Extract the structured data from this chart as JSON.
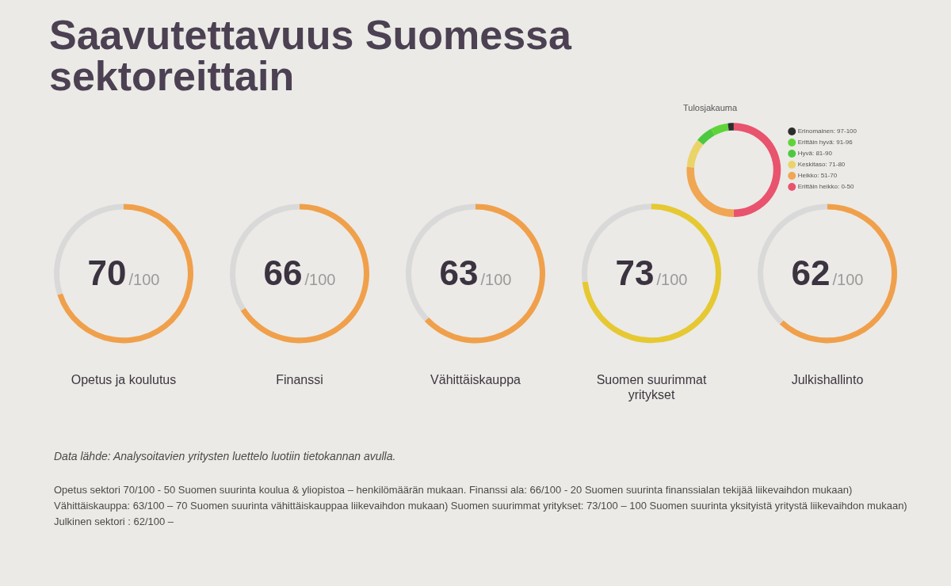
{
  "chart_data": [
    {
      "type": "other",
      "title": "Saavutettavuus Suomessa sektoreittain"
    },
    {
      "type": "donut",
      "title": "Tulosjakauma",
      "categories": [
        "Erinomainen: 97-100",
        "Erittäin hyvä: 91-96",
        "Hyvä: 81-90",
        "Keskitaso: 71-80",
        "Heikko: 51-70",
        "Erittäin heikko: 0-50"
      ],
      "values": [
        2,
        6,
        6,
        10,
        26,
        50
      ],
      "colors": [
        "#2d2d2d",
        "#5fd43a",
        "#4cc93f",
        "#ead46a",
        "#f0a652",
        "#e9536e"
      ],
      "legend": "right"
    },
    {
      "type": "donut",
      "title": "Opetus ja koulutus",
      "categories": [
        null,
        null
      ],
      "values": [
        70,
        30
      ],
      "colors": [
        "#f0a04b",
        "#d9d9d9"
      ],
      "annotations": [
        "70",
        "/100"
      ]
    },
    {
      "type": "donut",
      "title": "Finanssi",
      "categories": [
        null,
        null
      ],
      "values": [
        66,
        34
      ],
      "colors": [
        "#f0a04b",
        "#d9d9d9"
      ],
      "annotations": [
        "66",
        "/100"
      ]
    },
    {
      "type": "donut",
      "title": "Vähittäiskauppa",
      "categories": [
        null,
        null
      ],
      "values": [
        63,
        37
      ],
      "colors": [
        "#f0a04b",
        "#d9d9d9"
      ],
      "annotations": [
        "63",
        "/100"
      ]
    },
    {
      "type": "donut",
      "title": "Suomen suurimmat yritykset",
      "categories": [
        null,
        null
      ],
      "values": [
        73,
        27
      ],
      "colors": [
        "#e6c832",
        "#d9d9d9"
      ],
      "annotations": [
        "73",
        "/100"
      ]
    },
    {
      "type": "donut",
      "title": "Julkishallinto",
      "categories": [
        null,
        null
      ],
      "values": [
        62,
        38
      ],
      "colors": [
        "#f0a04b",
        "#d9d9d9"
      ],
      "annotations": [
        "62",
        "/100"
      ]
    },
    {
      "type": "other",
      "annotations": [
        "Data lähde: Analysoitavien yritysten luettelo luotiin tietokannan avulla.",
        "Opetus sektori 70/100 - 50 Suomen suurinta koulua & yliopistoa – henkilömäärän mukaan. Finanssi ala: 66/100 - 20 Suomen suurinta finanssialan tekijää liikevaihdon mukaan)",
        "Vähittäiskauppa: 63/100 – 70 Suomen suurinta vähittäiskauppaa liikevaihdon mukaan) Suomen suurimmat yritykset: 73/100 – 100 Suomen suurinta yksityistä yritystä liikevaihdon mukaan)",
        "Julkinen sektori : 62/100 –"
      ]
    }
  ]
}
